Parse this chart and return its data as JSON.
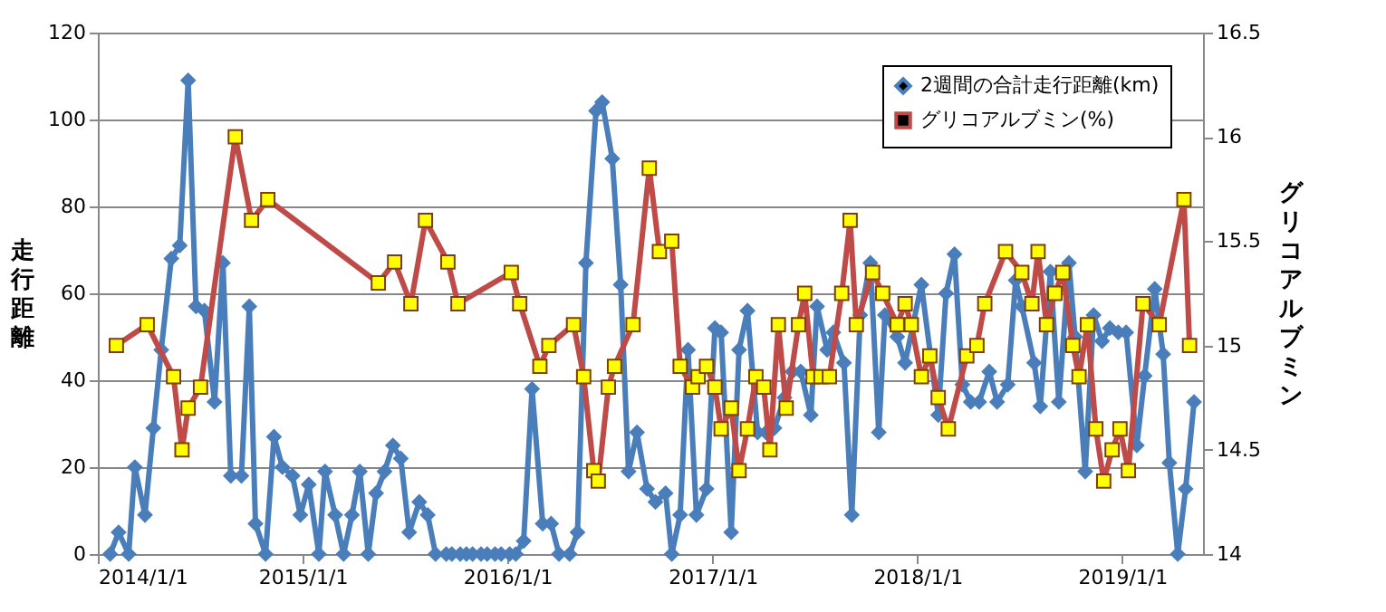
{
  "chart_data": {
    "type": "line",
    "xlim": [
      "2014-01-01",
      "2019-05-25"
    ],
    "xticks": [
      {
        "value": "2014-01-01",
        "label": "2014/1/1"
      },
      {
        "value": "2015-01-01",
        "label": "2015/1/1"
      },
      {
        "value": "2016-01-01",
        "label": "2016/1/1"
      },
      {
        "value": "2017-01-01",
        "label": "2017/1/1"
      },
      {
        "value": "2018-01-01",
        "label": "2018/1/1"
      },
      {
        "value": "2019-01-01",
        "label": "2019/1/1"
      }
    ],
    "ylabel": "走行距離",
    "y2label": "グリコアルブミン",
    "ylim": [
      0,
      120
    ],
    "yticks": [
      0,
      20,
      40,
      60,
      80,
      100,
      120
    ],
    "y2lim": [
      14,
      16.5
    ],
    "y2ticks": [
      14,
      14.5,
      15,
      15.5,
      16,
      16.5
    ],
    "grid": "y",
    "legend": "top right",
    "line_style": "solid",
    "series": [
      {
        "name": "2週間の合計走行距離(km)",
        "color": "#4a7ebb",
        "marker": "diamond",
        "x": [
          "2014-01-23",
          "2014-02-07",
          "2014-02-25",
          "2014-03-08",
          "2014-03-26",
          "2014-04-10",
          "2014-04-24",
          "2014-05-12",
          "2014-05-27",
          "2014-06-11",
          "2014-06-25",
          "2014-07-10",
          "2014-07-28",
          "2014-08-12",
          "2014-08-26",
          "2014-09-14",
          "2014-09-28",
          "2014-10-09",
          "2014-10-27",
          "2014-11-11",
          "2014-11-26",
          "2014-12-14",
          "2014-12-28",
          "2015-01-12",
          "2015-01-30",
          "2015-02-10",
          "2015-02-28",
          "2015-03-15",
          "2015-03-30",
          "2015-04-13",
          "2015-04-28",
          "2015-05-12",
          "2015-05-27",
          "2015-06-11",
          "2015-06-25",
          "2015-07-10",
          "2015-07-28",
          "2015-08-12",
          "2015-08-26",
          "2015-09-14",
          "2015-09-24",
          "2015-10-09",
          "2015-10-20",
          "2015-10-31",
          "2015-11-15",
          "2015-11-26",
          "2015-12-10",
          "2015-12-21",
          "2016-01-05",
          "2016-01-16",
          "2016-01-30",
          "2016-02-14",
          "2016-03-04",
          "2016-03-19",
          "2016-04-02",
          "2016-04-21",
          "2016-05-05",
          "2016-05-20",
          "2016-06-07",
          "2016-06-18",
          "2016-07-06",
          "2016-07-21",
          "2016-08-04",
          "2016-08-19",
          "2016-09-06",
          "2016-09-21",
          "2016-10-09",
          "2016-10-20",
          "2016-11-04",
          "2016-11-18",
          "2016-12-03",
          "2016-12-21",
          "2017-01-05",
          "2017-01-16",
          "2017-02-03",
          "2017-02-17",
          "2017-03-04",
          "2017-03-22",
          "2017-04-06",
          "2017-04-21",
          "2017-05-09",
          "2017-05-23",
          "2017-06-07",
          "2017-06-25",
          "2017-07-06",
          "2017-07-24",
          "2017-08-04",
          "2017-08-23",
          "2017-09-06",
          "2017-09-21",
          "2017-10-09",
          "2017-10-24",
          "2017-11-04",
          "2017-11-26",
          "2017-12-10",
          "2018-01-08",
          "2018-02-07",
          "2018-02-21",
          "2018-03-08",
          "2018-03-22",
          "2018-04-06",
          "2018-04-21",
          "2018-05-09",
          "2018-05-23",
          "2018-06-11",
          "2018-06-25",
          "2018-07-06",
          "2018-07-28",
          "2018-08-08",
          "2018-08-26",
          "2018-09-10",
          "2018-09-28",
          "2018-10-09",
          "2018-10-27",
          "2018-11-11",
          "2018-11-26",
          "2018-12-10",
          "2018-12-25",
          "2019-01-08",
          "2019-01-27",
          "2019-02-10",
          "2019-02-28",
          "2019-03-15",
          "2019-03-26",
          "2019-04-10",
          "2019-04-24",
          "2019-05-09"
        ],
        "values": [
          0,
          5,
          0,
          20,
          9,
          29,
          47,
          68,
          71,
          109,
          57,
          56,
          35,
          67,
          18,
          18,
          57,
          7,
          0,
          27,
          20,
          18,
          9,
          16,
          0,
          19,
          9,
          0,
          9,
          19,
          0,
          14,
          19,
          25,
          22,
          5,
          12,
          9,
          0,
          0,
          0,
          0,
          0,
          0,
          0,
          0,
          0,
          0,
          0,
          0,
          3,
          38,
          7,
          7,
          0,
          0,
          5,
          67,
          102,
          104,
          91,
          62,
          19,
          28,
          15,
          12,
          14,
          0,
          9,
          47,
          9,
          15,
          52,
          51,
          5,
          47,
          56,
          28,
          28,
          29,
          36,
          42,
          42,
          32,
          57,
          47,
          51,
          44,
          9,
          55,
          67,
          28,
          55,
          50,
          44,
          62,
          32,
          60,
          69,
          39,
          35,
          35,
          42,
          35,
          39,
          63,
          57,
          44,
          34,
          65,
          35,
          67,
          50,
          19,
          55,
          49,
          52,
          51,
          51,
          25,
          41,
          61,
          46,
          21,
          0,
          15,
          35
        ]
      },
      {
        "name": "グリコアルブミン(%)",
        "color": "#be4b48",
        "marker": "square",
        "axis": "y2",
        "x": [
          "2014-02-03",
          "2014-03-30",
          "2014-05-16",
          "2014-05-31",
          "2014-06-11",
          "2014-07-03",
          "2014-09-03",
          "2014-10-02",
          "2014-10-31",
          "2015-05-16",
          "2015-06-14",
          "2015-07-13",
          "2015-08-08",
          "2015-09-17",
          "2015-10-05",
          "2016-01-08",
          "2016-01-23",
          "2016-02-28",
          "2016-03-15",
          "2016-04-28",
          "2016-05-16",
          "2016-06-03",
          "2016-06-11",
          "2016-06-29",
          "2016-07-10",
          "2016-08-12",
          "2016-09-10",
          "2016-09-28",
          "2016-10-20",
          "2016-11-04",
          "2016-11-26",
          "2016-12-06",
          "2016-12-21",
          "2017-01-05",
          "2017-01-16",
          "2017-02-03",
          "2017-02-17",
          "2017-03-04",
          "2017-03-19",
          "2017-04-02",
          "2017-04-13",
          "2017-04-28",
          "2017-05-12",
          "2017-06-03",
          "2017-06-14",
          "2017-06-29",
          "2017-07-13",
          "2017-07-28",
          "2017-08-19",
          "2017-09-03",
          "2017-09-14",
          "2017-10-13",
          "2017-10-31",
          "2017-11-26",
          "2017-12-10",
          "2017-12-21",
          "2018-01-08",
          "2018-01-23",
          "2018-02-07",
          "2018-02-25",
          "2018-03-30",
          "2018-04-17",
          "2018-05-01",
          "2018-06-07",
          "2018-07-06",
          "2018-07-24",
          "2018-08-04",
          "2018-08-19",
          "2018-09-03",
          "2018-09-17",
          "2018-10-05",
          "2018-10-16",
          "2018-10-31",
          "2018-11-15",
          "2018-11-29",
          "2018-12-14",
          "2018-12-28",
          "2019-01-12",
          "2019-02-07",
          "2019-03-08",
          "2019-04-21",
          "2019-05-01"
        ],
        "values": [
          15.0,
          15.1,
          14.85,
          14.5,
          14.7,
          14.8,
          16.0,
          15.6,
          15.7,
          15.3,
          15.4,
          15.2,
          15.6,
          15.4,
          15.2,
          15.35,
          15.2,
          14.9,
          15.0,
          15.1,
          14.85,
          14.4,
          14.35,
          14.8,
          14.9,
          15.1,
          15.85,
          15.45,
          15.5,
          14.9,
          14.8,
          14.85,
          14.9,
          14.8,
          14.6,
          14.7,
          14.4,
          14.6,
          14.85,
          14.8,
          14.5,
          15.1,
          14.7,
          15.1,
          15.25,
          14.85,
          14.85,
          14.85,
          15.25,
          15.6,
          15.1,
          15.35,
          15.25,
          15.1,
          15.2,
          15.1,
          14.85,
          14.95,
          14.75,
          14.6,
          14.95,
          15.0,
          15.2,
          15.45,
          15.35,
          15.2,
          15.45,
          15.1,
          15.25,
          15.35,
          15.0,
          14.85,
          15.1,
          14.6,
          14.35,
          14.5,
          14.6,
          14.4,
          15.2,
          15.1,
          15.7,
          15.0
        ]
      }
    ]
  }
}
